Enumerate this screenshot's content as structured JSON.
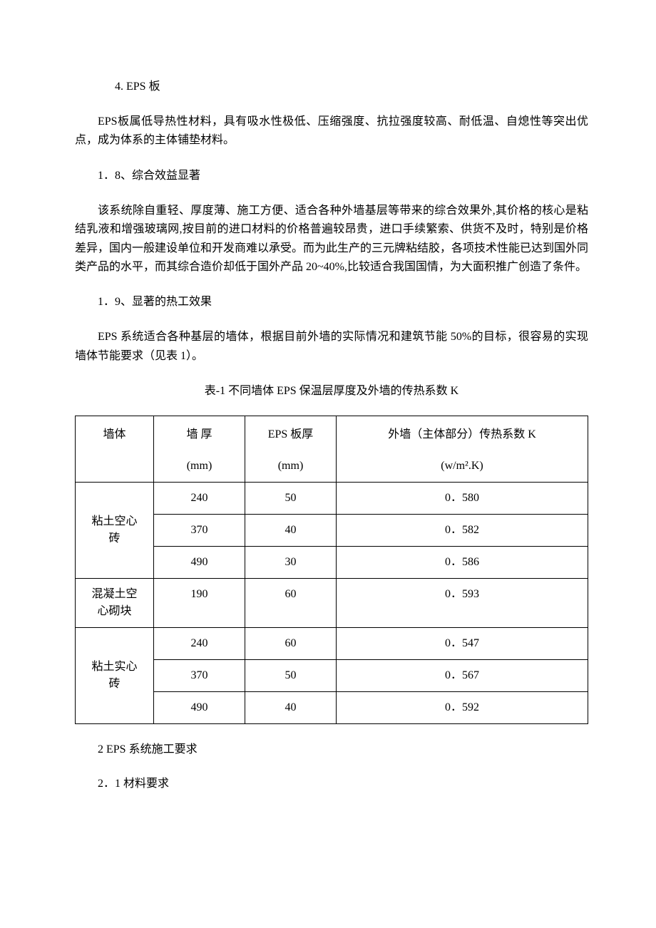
{
  "section4": {
    "num_title": "4.   EPS 板",
    "para": "EPS板属低导热性材料，具有吸水性极低、压缩强度、抗拉强度较高、耐低温、自熄性等突出优点，成为体系的主体铺垫材料。"
  },
  "section1_8": {
    "heading": "1．8、综合效益显著",
    "para": "该系统除自重轻、厚度薄、施工方便、适合各种外墙基层等带来的综合效果外,其价格的核心是粘结乳液和增强玻璃网,按目前的进口材料的价格普遍较昂贵，进口手续繁索、供货不及时，特别是价格差异，国内一般建设单位和开发商难以承受。而为此生产的三元牌粘结胶，各项技术性能已达到国外同类产品的水平，而其综合造价却低于国外产品 20~40%,比较适合我国国情，为大面积推广创造了条件。"
  },
  "section1_9": {
    "heading": "1．9、显著的热工效果",
    "para": "EPS 系统适合各种基层的墙体，根据目前外墙的实际情况和建筑节能 50%的目标，很容易的实现墙体节能要求（见表 1）。"
  },
  "table": {
    "caption": "表-1 不同墙体 EPS 保温层厚度及外墙的传热系数 K",
    "header": {
      "wall": "墙体",
      "thickness_l1": "墙 厚",
      "thickness_l2": "(mm)",
      "eps_l1": "EPS 板厚",
      "eps_l2": "(mm)",
      "k_l1": "外墙（主体部分）传热系数 K",
      "k_l2": "(w/m².K)"
    },
    "groups": [
      {
        "label": "粘土空心砖",
        "rows": [
          {
            "thick": "240",
            "eps": "50",
            "k": "0．580"
          },
          {
            "thick": "370",
            "eps": "40",
            "k": "0．582"
          },
          {
            "thick": "490",
            "eps": "30",
            "k": "0．586"
          }
        ]
      },
      {
        "label": "混凝土空心砌块",
        "rows": [
          {
            "thick": "190",
            "eps": "60",
            "k": "0．593"
          }
        ]
      },
      {
        "label": "粘土实心砖",
        "rows": [
          {
            "thick": "240",
            "eps": "60",
            "k": "0．547"
          },
          {
            "thick": "370",
            "eps": "50",
            "k": "0．567"
          },
          {
            "thick": "490",
            "eps": "40",
            "k": "0．592"
          }
        ]
      }
    ],
    "group_label_parts": {
      "g0_l1": "粘土空心",
      "g0_l2": "砖",
      "g1_l1": "混凝土空",
      "g1_l2": "心砌块",
      "g2_l1": "粘土实心",
      "g2_l2": "砖"
    }
  },
  "section2": {
    "heading": "2 EPS 系统施工要求"
  },
  "section2_1": {
    "heading": "2．1 材料要求"
  }
}
